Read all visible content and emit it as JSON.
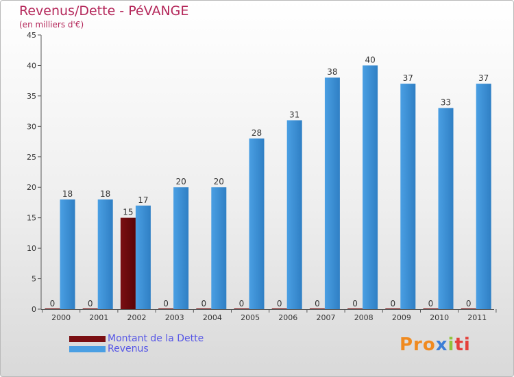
{
  "title": "Revenus/Dette - PéVANGE",
  "subtitle": "(en milliers d'€)",
  "colors": {
    "dette": "#7a0f12",
    "revenus": "#4a9fe3",
    "title": "#b4275a",
    "legend_text": "#5656e6"
  },
  "legend": [
    {
      "label": "Montant de la Dette",
      "color": "#7a0f12"
    },
    {
      "label": "Revenus",
      "color": "#4a9fe3"
    }
  ],
  "logo": {
    "parts": [
      "Pro",
      "x",
      "i",
      "ti"
    ]
  },
  "chart_data": {
    "type": "bar",
    "categories": [
      "2000",
      "2001",
      "2002",
      "2003",
      "2004",
      "2005",
      "2006",
      "2007",
      "2008",
      "2009",
      "2010",
      "2011"
    ],
    "series": [
      {
        "name": "Montant de la Dette",
        "values": [
          0,
          0,
          15,
          0,
          0,
          0,
          0,
          0,
          0,
          0,
          0,
          0
        ]
      },
      {
        "name": "Revenus",
        "values": [
          18,
          18,
          17,
          20,
          20,
          28,
          31,
          38,
          40,
          37,
          33,
          37
        ]
      }
    ],
    "ylim": [
      0,
      45
    ],
    "yticks": [
      0,
      5,
      10,
      15,
      20,
      25,
      30,
      35,
      40,
      45
    ],
    "grid": false,
    "legend_position": "bottom-left"
  }
}
